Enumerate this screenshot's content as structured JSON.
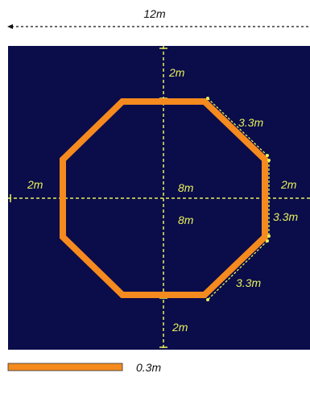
{
  "diagram": {
    "top_dimension": "12m",
    "inner_width_label": "8m",
    "inner_height_label": "8m",
    "top_margin": "2m",
    "bottom_margin": "2m",
    "left_margin": "2m",
    "right_margin": "2m",
    "edge_top_right": "3.3m",
    "edge_right": "3.3m",
    "edge_bottom_right": "3.3m",
    "legend_label": "0.3m"
  },
  "colors": {
    "background": "#0b0c4a",
    "octagon_stroke": "#f58a1f",
    "dimension_lines": "#e6f25a",
    "top_dimension_line": "#111111"
  }
}
